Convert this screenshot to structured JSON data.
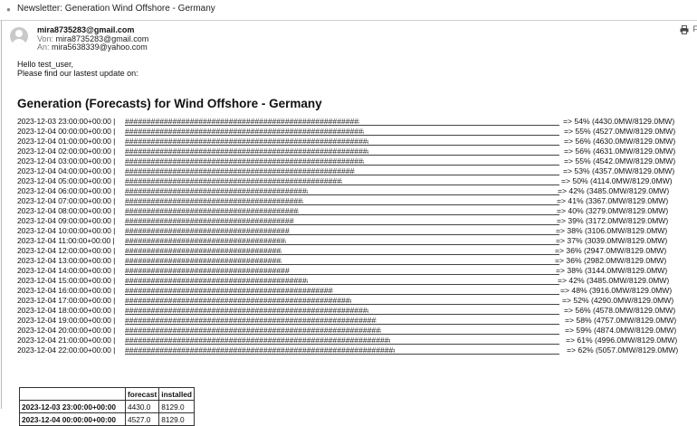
{
  "window": {
    "title": "Newsletter: Generation Wind Offshore - Germany"
  },
  "email": {
    "sender": "mira8735283@gmail.com",
    "from_label": "Von:",
    "from": "mira8735283@gmail.com",
    "to_label": "An:",
    "to": "mira5638339@yahoo.com",
    "greeting": "Hello test_user,",
    "intro": "Please find our lastest update on:"
  },
  "report": {
    "title": "Generation (Forecasts) for Wind Offshore - Germany",
    "installed_capacity": 8129.0,
    "rows": [
      {
        "ts": "2023-12-03 23:00:00+00:00",
        "fraction": 0.54,
        "result": "=> 54% (4430.0MW/8129.0MW)"
      },
      {
        "ts": "2023-12-04 00:00:00+00:00",
        "fraction": 0.55,
        "result": "=> 55% (4527.0MW/8129.0MW)"
      },
      {
        "ts": "2023-12-04 01:00:00+00:00",
        "fraction": 0.56,
        "result": "=> 56% (4630.0MW/8129.0MW)"
      },
      {
        "ts": "2023-12-04 02:00:00+00:00",
        "fraction": 0.56,
        "result": "=> 56% (4631.0MW/8129.0MW)"
      },
      {
        "ts": "2023-12-04 03:00:00+00:00",
        "fraction": 0.55,
        "result": "=> 55% (4542.0MW/8129.0MW)"
      },
      {
        "ts": "2023-12-04 04:00:00+00:00",
        "fraction": 0.53,
        "result": "=> 53% (4357.0MW/8129.0MW)"
      },
      {
        "ts": "2023-12-04 05:00:00+00:00",
        "fraction": 0.5,
        "result": "=> 50% (4114.0MW/8129.0MW)"
      },
      {
        "ts": "2023-12-04 06:00:00+00:00",
        "fraction": 0.42,
        "result": "=> 42% (3485.0MW/8129.0MW)"
      },
      {
        "ts": "2023-12-04 07:00:00+00:00",
        "fraction": 0.41,
        "result": "=> 41% (3367.0MW/8129.0MW)"
      },
      {
        "ts": "2023-12-04 08:00:00+00:00",
        "fraction": 0.4,
        "result": "=> 40% (3279.0MW/8129.0MW)"
      },
      {
        "ts": "2023-12-04 09:00:00+00:00",
        "fraction": 0.39,
        "result": "=> 39% (3172.0MW/8129.0MW)"
      },
      {
        "ts": "2023-12-04 10:00:00+00:00",
        "fraction": 0.38,
        "result": "=> 38% (3106.0MW/8129.0MW)"
      },
      {
        "ts": "2023-12-04 11:00:00+00:00",
        "fraction": 0.37,
        "result": "=> 37% (3039.0MW/8129.0MW)"
      },
      {
        "ts": "2023-12-04 12:00:00+00:00",
        "fraction": 0.36,
        "result": "=> 36% (2947.0MW/8129.0MW)"
      },
      {
        "ts": "2023-12-04 13:00:00+00:00",
        "fraction": 0.36,
        "result": "=> 36% (2982.0MW/8129.0MW)"
      },
      {
        "ts": "2023-12-04 14:00:00+00:00",
        "fraction": 0.38,
        "result": "=> 38% (3144.0MW/8129.0MW)"
      },
      {
        "ts": "2023-12-04 15:00:00+00:00",
        "fraction": 0.42,
        "result": "=> 42% (3485.0MW/8129.0MW)"
      },
      {
        "ts": "2023-12-04 16:00:00+00:00",
        "fraction": 0.48,
        "result": "=> 48% (3916.0MW/8129.0MW)"
      },
      {
        "ts": "2023-12-04 17:00:00+00:00",
        "fraction": 0.52,
        "result": "=> 52% (4290.0MW/8129.0MW)"
      },
      {
        "ts": "2023-12-04 18:00:00+00:00",
        "fraction": 0.56,
        "result": "=> 56% (4578.0MW/8129.0MW)"
      },
      {
        "ts": "2023-12-04 19:00:00+00:00",
        "fraction": 0.58,
        "result": "=> 58% (4757.0MW/8129.0MW)"
      },
      {
        "ts": "2023-12-04 20:00:00+00:00",
        "fraction": 0.59,
        "result": "=> 59% (4874.0MW/8129.0MW)"
      },
      {
        "ts": "2023-12-04 21:00:00+00:00",
        "fraction": 0.61,
        "result": "=> 61% (4996.0MW/8129.0MW)"
      },
      {
        "ts": "2023-12-04 22:00:00+00:00",
        "fraction": 0.62,
        "result": "=> 62% (5057.0MW/8129.0MW)"
      }
    ]
  },
  "table": {
    "headers": [
      "",
      "forecast",
      "installed"
    ],
    "rows": [
      [
        "2023-12-03 23:00:00+00:00",
        "4430.0",
        "8129.0"
      ],
      [
        "2023-12-04 00:00:00+00:00",
        "4527.0",
        "8129.0"
      ]
    ]
  },
  "icons": {
    "print": "printer-icon",
    "more": "more-icon",
    "avatar": "avatar-icon"
  }
}
